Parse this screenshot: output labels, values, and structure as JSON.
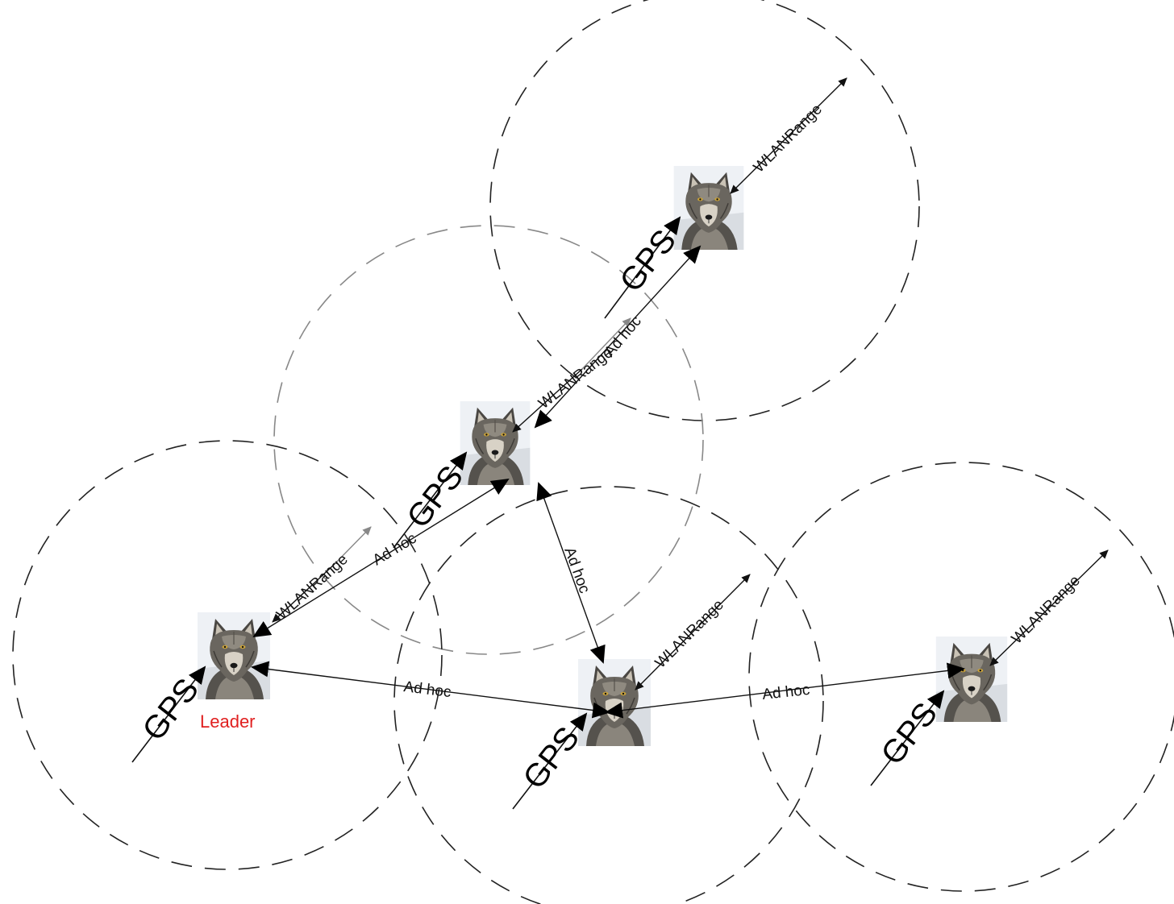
{
  "labels": {
    "gps": "GPS",
    "wlan_range": "WLANRange",
    "ad_hoc": "Ad hoc",
    "leader": "Leader"
  },
  "nodes": [
    {
      "name": "wolf-top",
      "role": ""
    },
    {
      "name": "wolf-middle",
      "role": ""
    },
    {
      "name": "wolf-leader",
      "role": "Leader"
    },
    {
      "name": "wolf-bottom-center",
      "role": ""
    },
    {
      "name": "wolf-bottom-right",
      "role": ""
    }
  ],
  "colors": {
    "leader_label": "#e02020",
    "lines": "#111111",
    "faint": "#888888"
  },
  "icons": [
    "wolf-icon"
  ]
}
